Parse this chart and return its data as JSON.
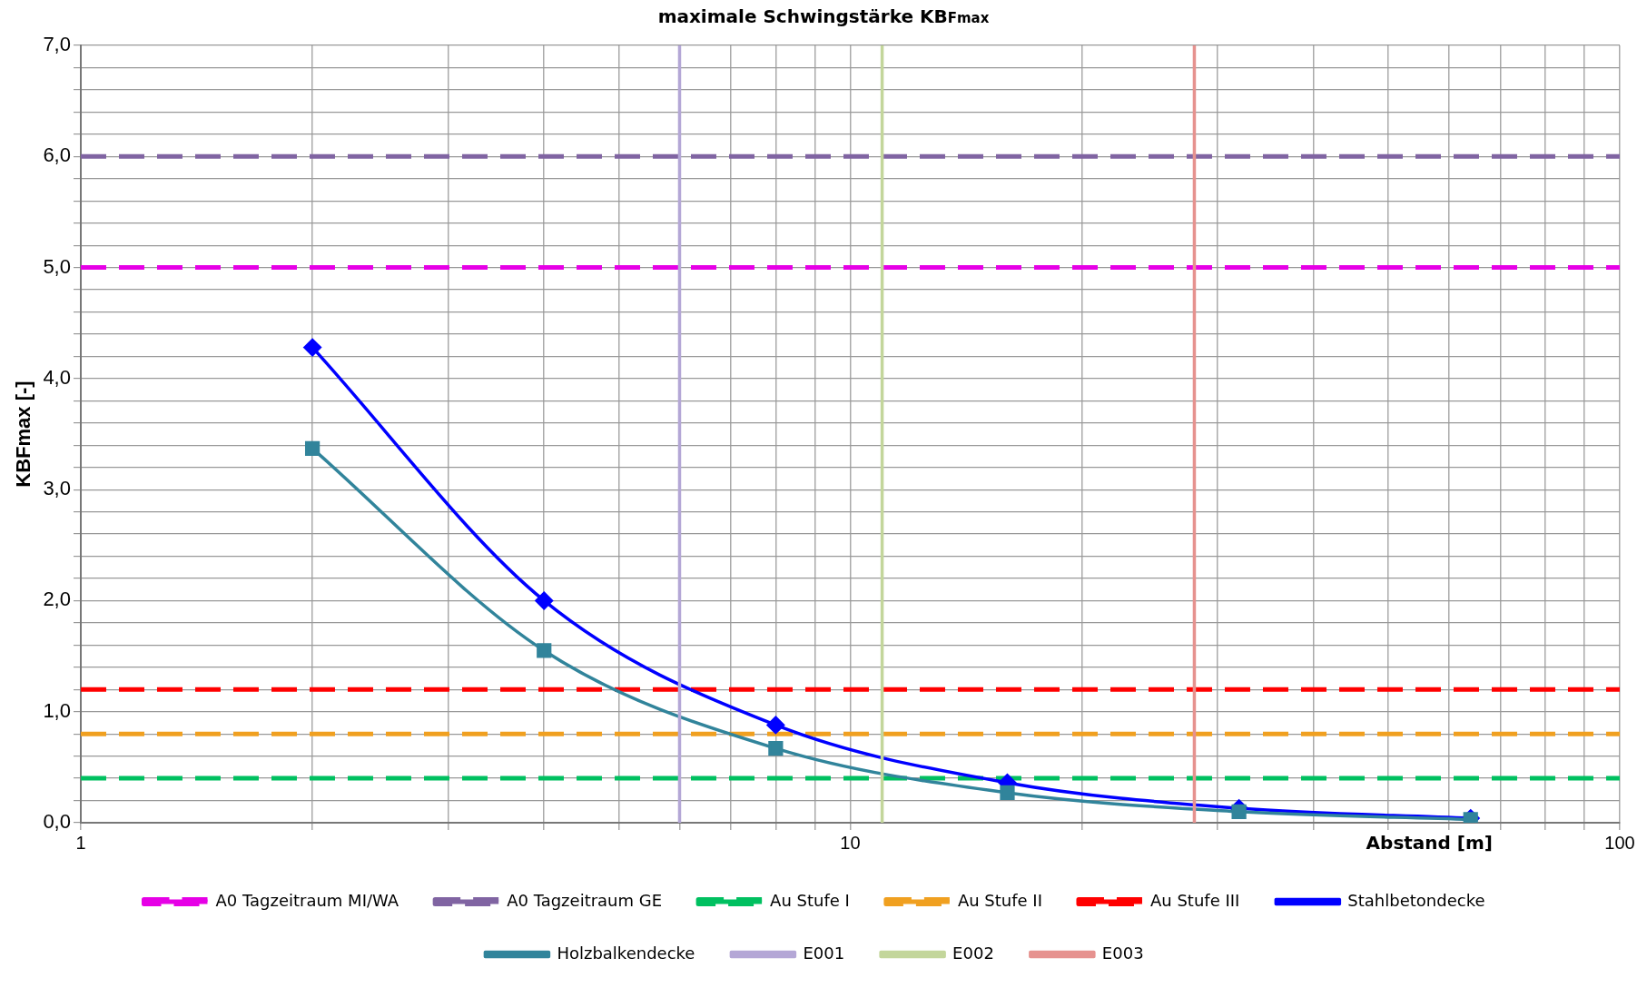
{
  "chart_data": {
    "type": "line",
    "title": "maximale Schwingstärke KB$_{Fmax}$",
    "xlabel": "Abstand [m]",
    "ylabel": "KBFmax [-]",
    "log": "x",
    "grid": true,
    "legend": "bottom",
    "xlim": [
      1,
      100
    ],
    "ylim": [
      0,
      7
    ],
    "xticks": [
      1,
      {
        "value": 2,
        "label": null
      },
      {
        "value": 3,
        "label": null
      },
      {
        "value": 4,
        "label": null
      },
      {
        "value": 5,
        "label": null
      },
      {
        "value": 6,
        "label": null
      },
      {
        "value": 7,
        "label": null
      },
      {
        "value": 8,
        "label": null
      },
      {
        "value": 9,
        "label": null
      },
      10,
      {
        "value": 20,
        "label": null
      },
      {
        "value": 30,
        "label": null
      },
      {
        "value": 40,
        "label": null
      },
      {
        "value": 50,
        "label": null
      },
      {
        "value": 60,
        "label": null
      },
      {
        "value": 70,
        "label": null
      },
      {
        "value": 80,
        "label": null
      },
      {
        "value": 90,
        "label": null
      },
      100
    ],
    "yticks": [
      {
        "value": 0,
        "label": "0,0"
      },
      {
        "value": 0.2,
        "label": null
      },
      {
        "value": 0.4,
        "label": null
      },
      {
        "value": 0.6,
        "label": null
      },
      {
        "value": 0.8,
        "label": null
      },
      {
        "value": 1,
        "label": "1,0"
      },
      {
        "value": 1.2,
        "label": null
      },
      {
        "value": 1.4,
        "label": null
      },
      {
        "value": 1.6,
        "label": null
      },
      {
        "value": 1.8,
        "label": null
      },
      {
        "value": 2,
        "label": "2,0"
      },
      {
        "value": 2.2,
        "label": null
      },
      {
        "value": 2.4,
        "label": null
      },
      {
        "value": 2.6,
        "label": null
      },
      {
        "value": 2.8,
        "label": null
      },
      {
        "value": 3,
        "label": "3,0"
      },
      {
        "value": 3.2,
        "label": null
      },
      {
        "value": 3.4,
        "label": null
      },
      {
        "value": 3.6,
        "label": null
      },
      {
        "value": 3.8,
        "label": null
      },
      {
        "value": 4,
        "label": "4,0"
      },
      {
        "value": 4.2,
        "label": null
      },
      {
        "value": 4.4,
        "label": null
      },
      {
        "value": 4.6,
        "label": null
      },
      {
        "value": 4.8,
        "label": null
      },
      {
        "value": 5,
        "label": "5,0"
      },
      {
        "value": 5.2,
        "label": null
      },
      {
        "value": 5.4,
        "label": null
      },
      {
        "value": 5.6,
        "label": null
      },
      {
        "value": 5.8,
        "label": null
      },
      {
        "value": 6,
        "label": "6,0"
      },
      {
        "value": 6.2,
        "label": null
      },
      {
        "value": 6.4,
        "label": null
      },
      {
        "value": 6.6,
        "label": null
      },
      {
        "value": 6.8,
        "label": null
      },
      {
        "value": 7,
        "label": "7,0"
      }
    ],
    "series": [
      {
        "name": "A0 Tagzeitraum MI/WA",
        "color": "#e600e6",
        "x": [
          1,
          100
        ],
        "values": [
          5,
          5
        ],
        "line_style": "dashed",
        "marker": "none"
      },
      {
        "name": "A0 Tagzeitraum GE",
        "color": "#8064a2",
        "x": [
          1,
          100
        ],
        "values": [
          6,
          6
        ],
        "line_style": "dashed",
        "marker": "none"
      },
      {
        "name": "Au Stufe I",
        "color": "#00c060",
        "x": [
          1,
          100
        ],
        "values": [
          0.4,
          0.4
        ],
        "line_style": "dashed",
        "marker": "none"
      },
      {
        "name": "Au Stufe II",
        "color": "#f0a020",
        "x": [
          1,
          100
        ],
        "values": [
          0.8,
          0.8
        ],
        "line_style": "dashed",
        "marker": "none"
      },
      {
        "name": "Au Stufe III",
        "color": "#ff0000",
        "x": [
          1,
          100
        ],
        "values": [
          1.2,
          1.2
        ],
        "line_style": "dashed",
        "marker": "none"
      },
      {
        "name": "Stahlbetondecke",
        "color": "#0000ff",
        "x": [
          2,
          4,
          8,
          16,
          32,
          64
        ],
        "values": [
          4.28,
          2.0,
          0.88,
          0.36,
          0.13,
          0.04
        ],
        "line_style": "solid",
        "marker": "diamond"
      },
      {
        "name": "Holzbalkendecke",
        "color": "#31849b",
        "x": [
          2,
          4,
          8,
          16,
          32,
          64
        ],
        "values": [
          3.37,
          1.55,
          0.67,
          0.27,
          0.1,
          0.03
        ],
        "line_style": "solid",
        "marker": "square"
      },
      {
        "name": "E001",
        "color": "#b4a7d6",
        "x": [
          6,
          6
        ],
        "values": [
          0,
          7
        ],
        "line_style": "solid",
        "marker": "none"
      },
      {
        "name": "E002",
        "color": "#c3d69b",
        "x": [
          11,
          11
        ],
        "values": [
          0,
          7
        ],
        "line_style": "solid",
        "marker": "none"
      },
      {
        "name": "E003",
        "color": "#e6928f",
        "x": [
          28,
          28
        ],
        "values": [
          0,
          7
        ],
        "line_style": "solid",
        "marker": "none"
      }
    ]
  }
}
